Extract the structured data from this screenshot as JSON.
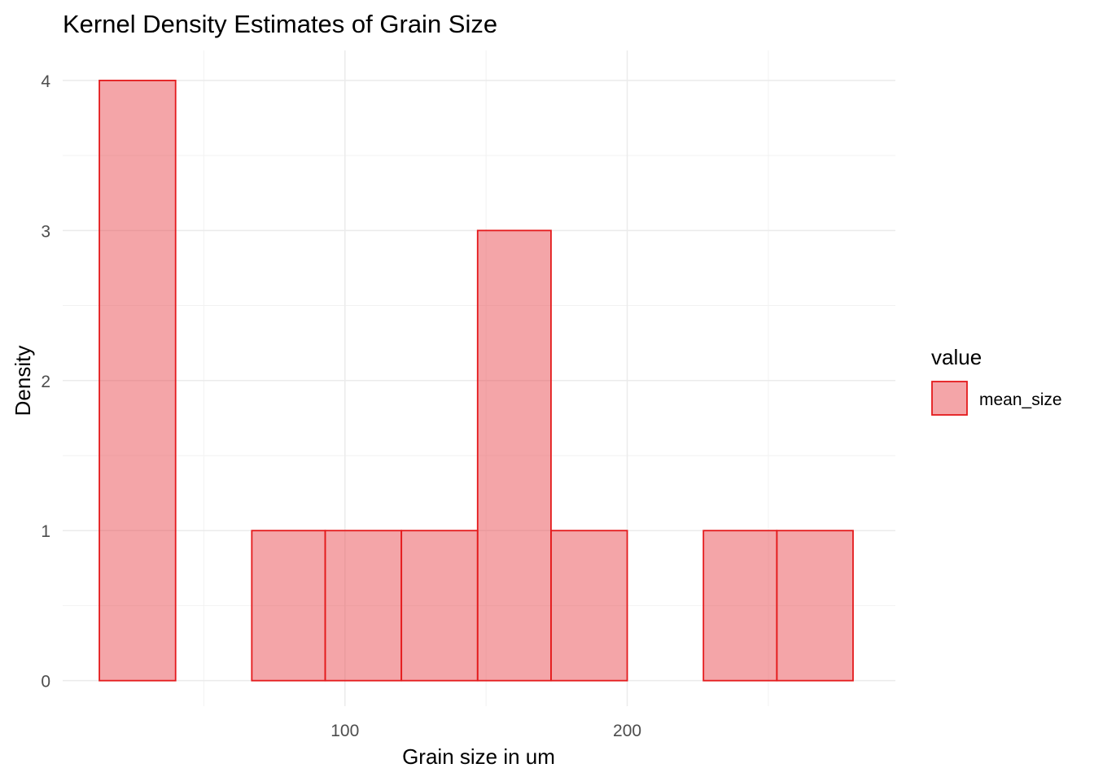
{
  "chart_data": {
    "type": "bar",
    "title": "Kernel Density Estimates of Grain Size",
    "xlabel": "Grain size in um",
    "ylabel": "Density",
    "xlim": [
      0,
      295
    ],
    "ylim": [
      -0.17,
      4.2
    ],
    "x_ticks": [
      100,
      200
    ],
    "y_ticks": [
      0,
      1,
      2,
      3,
      4
    ],
    "grid": true,
    "bins": [
      {
        "x0": 13,
        "x1": 40,
        "value": 4
      },
      {
        "x0": 40,
        "x1": 67,
        "value": 0
      },
      {
        "x0": 67,
        "x1": 93,
        "value": 1
      },
      {
        "x0": 93,
        "x1": 120,
        "value": 1
      },
      {
        "x0": 120,
        "x1": 147,
        "value": 1
      },
      {
        "x0": 147,
        "x1": 173,
        "value": 3
      },
      {
        "x0": 173,
        "x1": 200,
        "value": 1
      },
      {
        "x0": 200,
        "x1": 227,
        "value": 0
      },
      {
        "x0": 227,
        "x1": 253,
        "value": 1
      },
      {
        "x0": 253,
        "x1": 280,
        "value": 1
      }
    ],
    "series": [
      {
        "name": "mean_size"
      }
    ],
    "legend": {
      "title": "value",
      "position": "right"
    },
    "colors": {
      "fill": "#ea4c51",
      "stroke": "#e41a1c"
    }
  }
}
